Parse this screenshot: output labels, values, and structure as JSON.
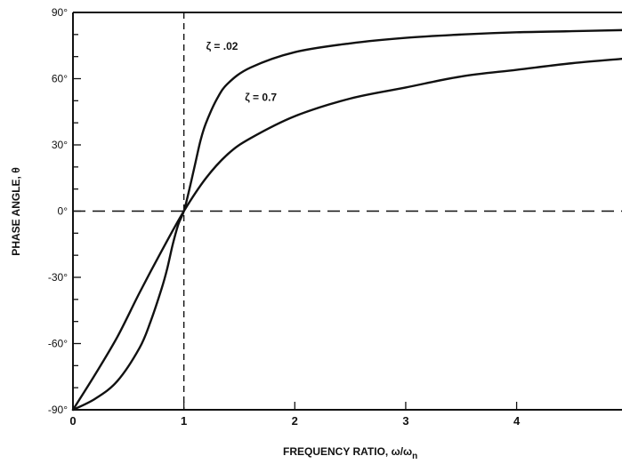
{
  "chart_data": {
    "type": "line",
    "xlabel": "FREQUENCY RATIO, ω/ωn",
    "xlabel_main": "FREQUENCY RATIO, ω/ω",
    "xlabel_sub": "n",
    "ylabel": "PHASE ANGLE, θ",
    "xlim": [
      0,
      4.95
    ],
    "ylim": [
      -90,
      90
    ],
    "x_ticks": [
      0,
      1,
      2,
      3,
      4
    ],
    "x_tick_labels": [
      "0",
      "1",
      "2",
      "3",
      "4"
    ],
    "y_ticks": [
      -90,
      -60,
      -30,
      0,
      30,
      60,
      90
    ],
    "y_tick_labels": [
      "-90°",
      "-60°",
      "-30°",
      "0°",
      "30°",
      "60°",
      "90°"
    ],
    "grid": false,
    "reference_lines": [
      {
        "orientation": "vertical",
        "x": 1,
        "style": "dashed"
      },
      {
        "orientation": "horizontal",
        "y": 0,
        "style": "dashed"
      }
    ],
    "series": [
      {
        "label": "ζ = .02",
        "x": [
          0,
          0.2,
          0.4,
          0.6,
          0.7,
          0.8,
          0.85,
          0.9,
          0.95,
          1.0,
          1.05,
          1.1,
          1.15,
          1.2,
          1.3,
          1.4,
          1.6,
          2.0,
          2.5,
          3.0,
          3.5,
          4.0,
          4.5,
          4.95
        ],
        "y": [
          -90,
          -85,
          -77,
          -62,
          -50,
          -35,
          -26,
          -15,
          -6,
          0,
          10,
          21,
          32,
          40,
          51,
          58,
          65,
          72,
          76,
          78.5,
          80,
          81,
          81.5,
          82
        ]
      },
      {
        "label": "ζ = 0.7",
        "x": [
          0,
          0.2,
          0.4,
          0.6,
          0.8,
          1.0,
          1.2,
          1.4,
          1.6,
          2.0,
          2.5,
          3.0,
          3.5,
          4.0,
          4.5,
          4.95
        ],
        "y": [
          -90,
          -74,
          -57,
          -37,
          -18,
          0,
          15,
          26,
          33,
          43,
          51,
          56,
          61,
          64,
          67,
          69
        ]
      }
    ],
    "annotations": [
      {
        "text": "ζ = .02",
        "x": 1.2,
        "y": 73
      },
      {
        "text": "ζ = 0.7",
        "x": 1.55,
        "y": 50
      }
    ]
  }
}
